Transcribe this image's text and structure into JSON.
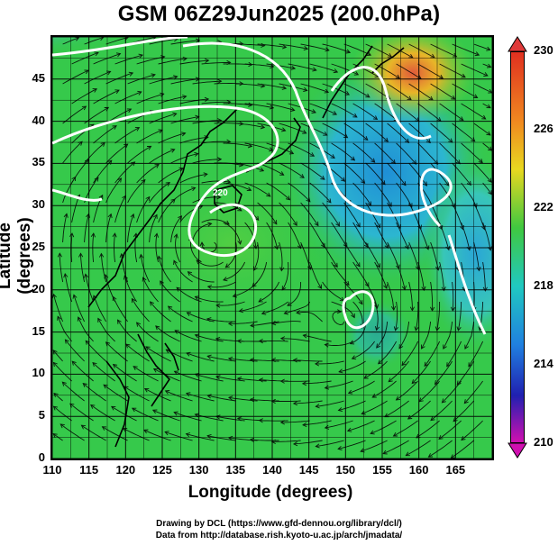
{
  "title": "GSM 06Z29Jun2025 (200.0hPa)",
  "axes": {
    "xlabel": "Longitude (degrees)",
    "ylabel": "Latitude  (degrees)",
    "xticks": [
      "110",
      "115",
      "120",
      "125",
      "130",
      "135",
      "140",
      "145",
      "150",
      "155",
      "160",
      "165"
    ],
    "yticks": [
      "0",
      "5",
      "10",
      "15",
      "20",
      "25",
      "30",
      "35",
      "40",
      "45"
    ],
    "xlim": [
      110,
      170
    ],
    "ylim": [
      0,
      50
    ]
  },
  "contour_label": "220",
  "colorbar": {
    "ticks": [
      "230",
      "226",
      "222",
      "218",
      "214",
      "210"
    ],
    "range": [
      210,
      230
    ]
  },
  "colors": {
    "green": "#34c84a",
    "blue": "#2f8fd8",
    "cyan": "#29c2c8",
    "orange": "#e8b528",
    "red": "#e05a3a"
  },
  "credits": {
    "line1": "Drawing by DCL (https://www.gfd-dennou.org/library/dcl/)",
    "line2": "Data from http://database.rish.kyoto-u.ac.jp/arch/jmadata/"
  }
}
